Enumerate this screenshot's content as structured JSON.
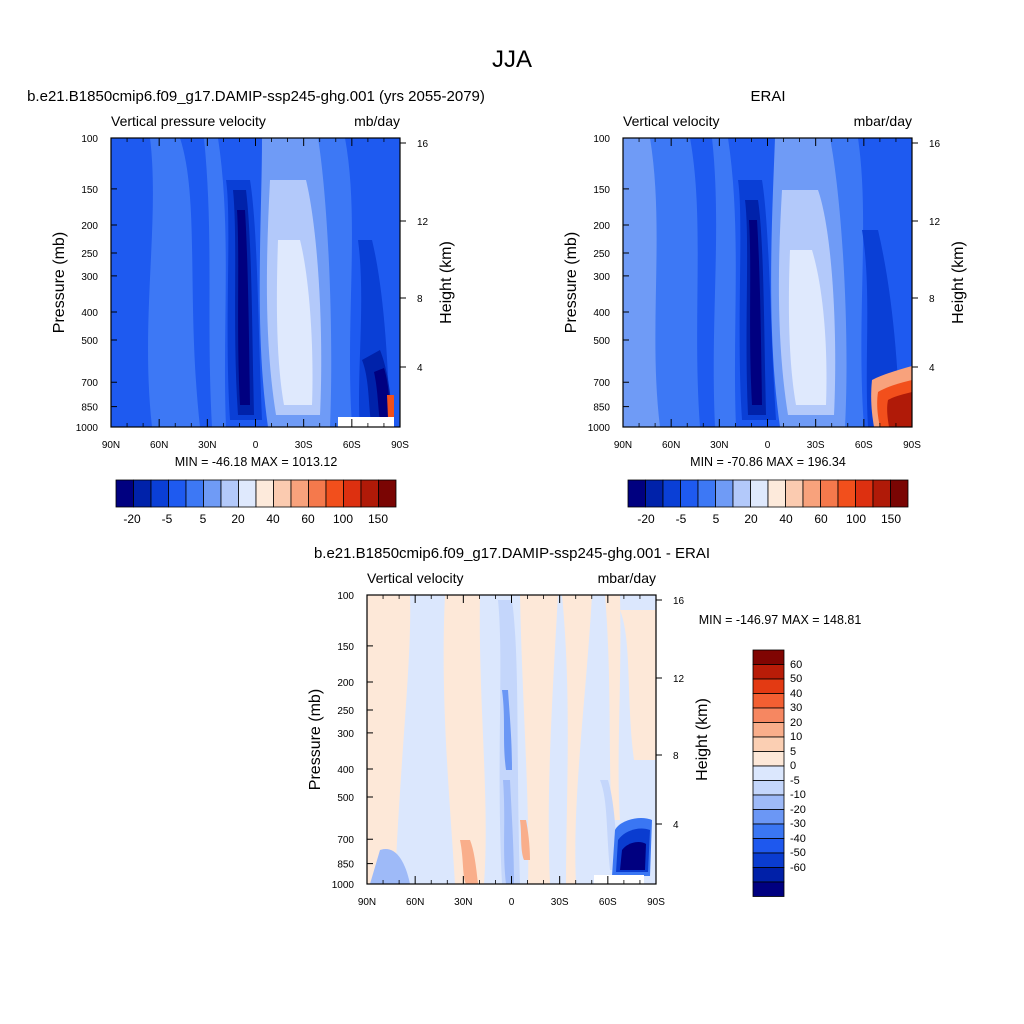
{
  "figure_title": "JJA",
  "colors": {
    "abs_palette": [
      "#000080",
      "#0022aa",
      "#0a3fd6",
      "#1e5af0",
      "#3d78f5",
      "#6f9bf6",
      "#b3c9fa",
      "#dfe9fd",
      "#fdeadb",
      "#fbcbb0",
      "#f8a27c",
      "#f5794c",
      "#f24f1c",
      "#dd3010",
      "#b01a08",
      "#7a0503"
    ],
    "diff_palette": [
      "#000080",
      "#0020a8",
      "#0a3cd0",
      "#1e58ee",
      "#3a76f3",
      "#6b97f5",
      "#9ebaf8",
      "#c4d6fb",
      "#dbe7fd",
      "#fde8d8",
      "#fbcfb3",
      "#f9ae8b",
      "#f68761",
      "#f35f32",
      "#e33a13",
      "#b81c08",
      "#800502"
    ]
  },
  "chart_data": [
    {
      "type": "heatmap",
      "title": "b.e21.B1850cmip6.f09_g17.DAMIP-ssp245-ghg.001 (yrs 2055-2079)",
      "left_label": "Vertical pressure velocity",
      "right_label": "mb/day",
      "ylabel": "Pressure (mb)",
      "ylabel_right": "Height (km)",
      "x_ticks": [
        "90N",
        "60N",
        "30N",
        "0",
        "30S",
        "60S",
        "90S"
      ],
      "y_ticks": [
        "100",
        "150",
        "200",
        "250",
        "300",
        "400",
        "500",
        "700",
        "850",
        "1000"
      ],
      "y_ticks_right": [
        "16",
        "12",
        "8",
        "4"
      ],
      "stats": "MIN = -46.18  MAX = 1013.12",
      "colorbar_labels": [
        "-20",
        "-5",
        "5",
        "20",
        "40",
        "60",
        "100",
        "150"
      ],
      "levels": [
        -40,
        -30,
        -20,
        -10,
        -5,
        0,
        5,
        10,
        20,
        30,
        40,
        50,
        60,
        80,
        100,
        150
      ]
    },
    {
      "type": "heatmap",
      "title": "ERAI",
      "left_label": "Vertical velocity",
      "right_label": "mbar/day",
      "ylabel": "Pressure (mb)",
      "ylabel_right": "Height (km)",
      "x_ticks": [
        "90N",
        "60N",
        "30N",
        "0",
        "30S",
        "60S",
        "90S"
      ],
      "y_ticks": [
        "100",
        "150",
        "200",
        "250",
        "300",
        "400",
        "500",
        "700",
        "850",
        "1000"
      ],
      "y_ticks_right": [
        "16",
        "12",
        "8",
        "4"
      ],
      "stats": "MIN = -70.86  MAX = 196.34",
      "colorbar_labels": [
        "-20",
        "-5",
        "5",
        "20",
        "40",
        "60",
        "100",
        "150"
      ]
    },
    {
      "type": "heatmap",
      "title": "b.e21.B1850cmip6.f09_g17.DAMIP-ssp245-ghg.001 - ERAI",
      "left_label": "Vertical velocity",
      "right_label": "mbar/day",
      "ylabel": "Pressure (mb)",
      "ylabel_right": "Height (km)",
      "x_ticks": [
        "90N",
        "60N",
        "30N",
        "0",
        "30S",
        "60S",
        "90S"
      ],
      "y_ticks": [
        "100",
        "150",
        "200",
        "250",
        "300",
        "400",
        "500",
        "700",
        "850",
        "1000"
      ],
      "y_ticks_right": [
        "16",
        "12",
        "8",
        "4"
      ],
      "stats": "MIN = -146.97  MAX = 148.81",
      "colorbar_labels": [
        "60",
        "50",
        "40",
        "30",
        "20",
        "10",
        "5",
        "0",
        "-5",
        "-10",
        "-20",
        "-30",
        "-40",
        "-50",
        "-60"
      ]
    }
  ]
}
